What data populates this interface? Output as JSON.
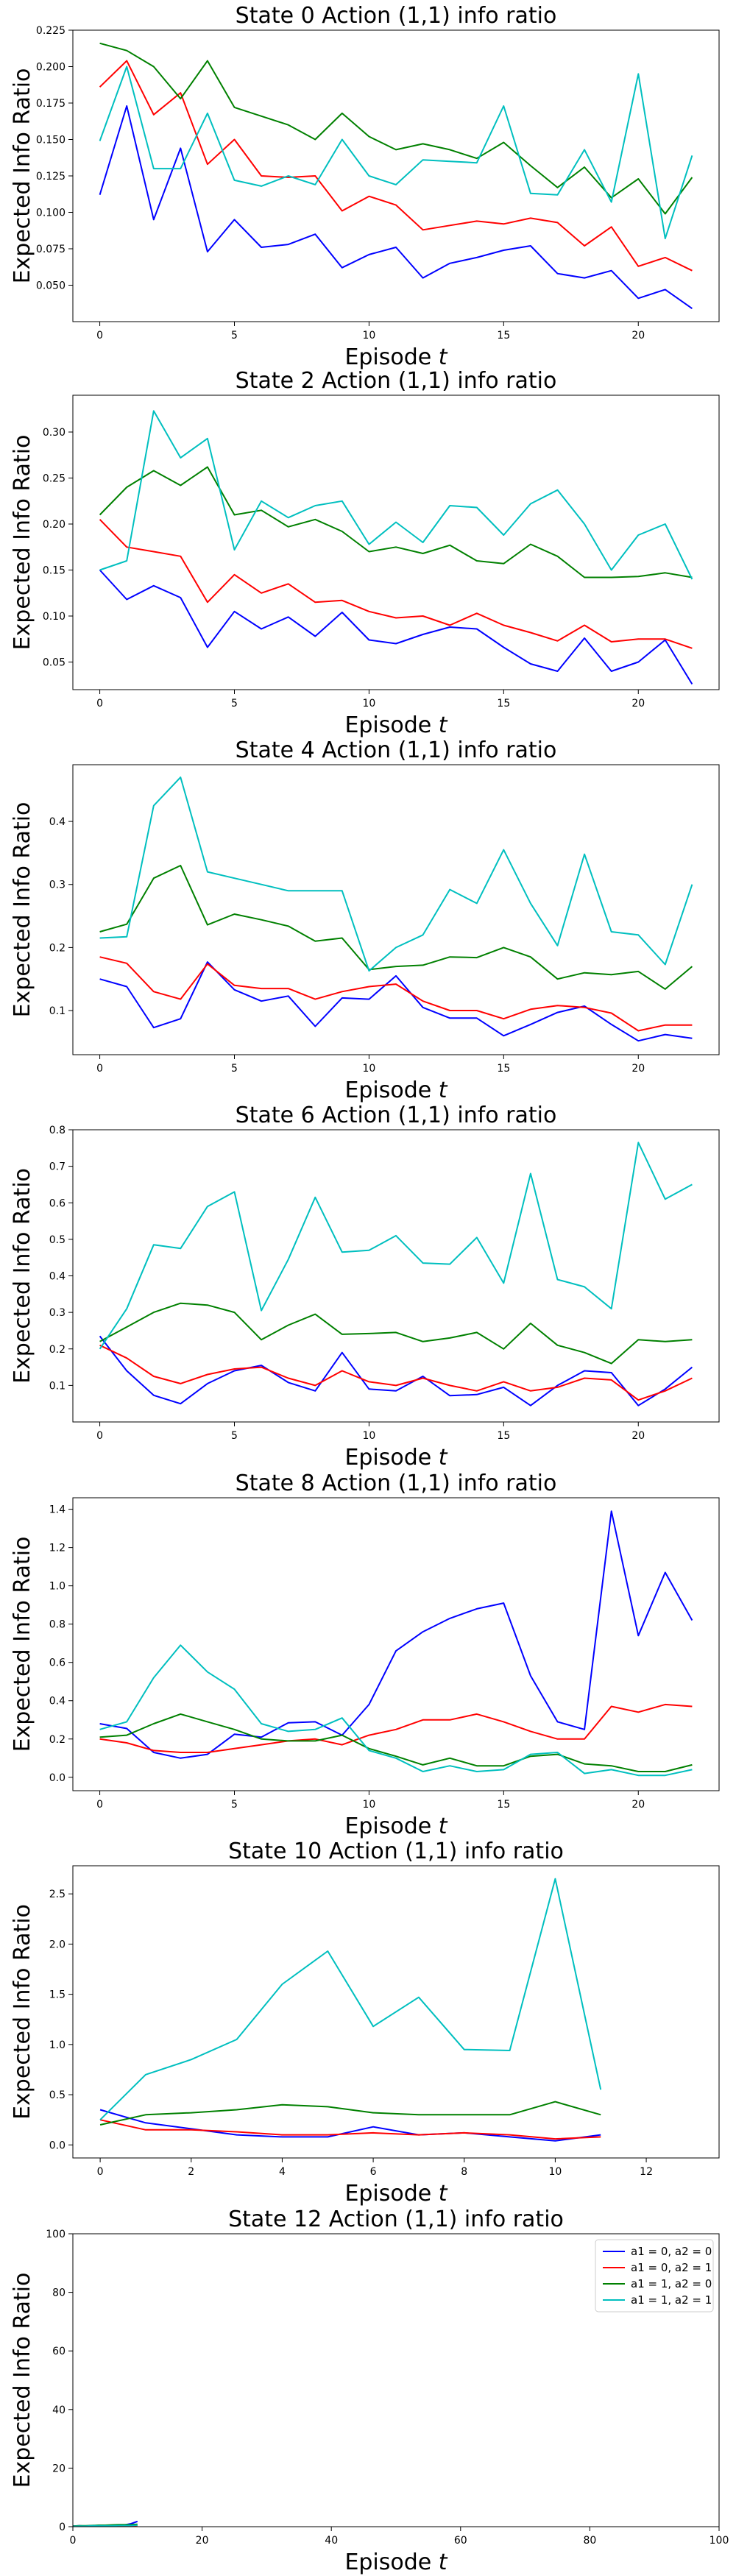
{
  "chart_data": [
    {
      "type": "line",
      "title": "State 0 Action (1,1) info ratio",
      "xlabel": "Episode t",
      "ylabel": "Expected Info Ratio",
      "xlim": [
        -1,
        23
      ],
      "ylim": [
        0.025,
        0.225
      ],
      "xticks": [
        0,
        5,
        10,
        15,
        20
      ],
      "yticks": [
        0.05,
        0.075,
        0.1,
        0.125,
        0.15,
        0.175,
        0.2,
        0.225
      ],
      "ytick_labels": [
        "0.050",
        "0.075",
        "0.100",
        "0.125",
        "0.150",
        "0.175",
        "0.200",
        "0.225"
      ],
      "x": [
        0,
        1,
        2,
        3,
        4,
        5,
        6,
        7,
        8,
        9,
        10,
        11,
        12,
        13,
        14,
        15,
        16,
        17,
        18,
        19,
        20,
        21,
        22
      ],
      "series": [
        {
          "color": "#0000ff",
          "values": [
            0.112,
            0.173,
            0.095,
            0.144,
            0.073,
            0.095,
            0.076,
            0.078,
            0.085,
            0.062,
            0.071,
            0.076,
            0.055,
            0.065,
            0.069,
            0.074,
            0.077,
            0.058,
            0.055,
            0.06,
            0.041,
            0.047,
            0.034
          ]
        },
        {
          "color": "#ff0000",
          "values": [
            0.186,
            0.204,
            0.167,
            0.182,
            0.133,
            0.15,
            0.125,
            0.124,
            0.125,
            0.101,
            0.111,
            0.105,
            0.088,
            0.091,
            0.094,
            0.092,
            0.096,
            0.093,
            0.077,
            0.09,
            0.063,
            0.069,
            0.06
          ]
        },
        {
          "color": "#008000",
          "values": [
            0.216,
            0.211,
            0.2,
            0.178,
            0.204,
            0.172,
            0.166,
            0.16,
            0.15,
            0.168,
            0.152,
            0.143,
            0.147,
            0.143,
            0.137,
            0.148,
            0.132,
            0.117,
            0.131,
            0.11,
            0.123,
            0.099,
            0.124
          ]
        },
        {
          "color": "#00bfbf",
          "values": [
            0.149,
            0.2,
            0.13,
            0.13,
            0.168,
            0.122,
            0.118,
            0.125,
            0.119,
            0.15,
            0.125,
            0.119,
            0.136,
            0.135,
            0.134,
            0.173,
            0.113,
            0.112,
            0.143,
            0.107,
            0.195,
            0.082,
            0.139
          ]
        }
      ]
    },
    {
      "type": "line",
      "title": "State 2 Action (1,1) info ratio",
      "xlabel": "Episode t",
      "ylabel": "Expected Info Ratio",
      "xlim": [
        -1,
        23
      ],
      "ylim": [
        0.02,
        0.34
      ],
      "xticks": [
        0,
        5,
        10,
        15,
        20
      ],
      "yticks": [
        0.05,
        0.1,
        0.15,
        0.2,
        0.25,
        0.3
      ],
      "ytick_labels": [
        "0.05",
        "0.10",
        "0.15",
        "0.20",
        "0.25",
        "0.30"
      ],
      "x": [
        0,
        1,
        2,
        3,
        4,
        5,
        6,
        7,
        8,
        9,
        10,
        11,
        12,
        13,
        14,
        15,
        16,
        17,
        18,
        19,
        20,
        21,
        22
      ],
      "series": [
        {
          "color": "#0000ff",
          "values": [
            0.15,
            0.118,
            0.133,
            0.12,
            0.066,
            0.105,
            0.086,
            0.099,
            0.078,
            0.104,
            0.074,
            0.07,
            0.08,
            0.088,
            0.086,
            0.066,
            0.048,
            0.04,
            0.076,
            0.04,
            0.05,
            0.074,
            0.026
          ]
        },
        {
          "color": "#ff0000",
          "values": [
            0.205,
            0.175,
            0.17,
            0.165,
            0.115,
            0.145,
            0.125,
            0.135,
            0.115,
            0.117,
            0.105,
            0.098,
            0.1,
            0.09,
            0.103,
            0.09,
            0.082,
            0.073,
            0.09,
            0.072,
            0.075,
            0.075,
            0.065
          ]
        },
        {
          "color": "#008000",
          "values": [
            0.21,
            0.24,
            0.258,
            0.242,
            0.262,
            0.21,
            0.215,
            0.197,
            0.205,
            0.192,
            0.17,
            0.175,
            0.168,
            0.177,
            0.16,
            0.157,
            0.178,
            0.165,
            0.142,
            0.142,
            0.143,
            0.147,
            0.142
          ]
        },
        {
          "color": "#00bfbf",
          "values": [
            0.15,
            0.16,
            0.323,
            0.272,
            0.293,
            0.172,
            0.225,
            0.207,
            0.22,
            0.225,
            0.178,
            0.202,
            0.18,
            0.22,
            0.218,
            0.188,
            0.222,
            0.237,
            0.2,
            0.15,
            0.188,
            0.2,
            0.14
          ]
        }
      ]
    },
    {
      "type": "line",
      "title": "State 4 Action (1,1) info ratio",
      "xlabel": "Episode t",
      "ylabel": "Expected Info Ratio",
      "xlim": [
        -1,
        23
      ],
      "ylim": [
        0.03,
        0.49
      ],
      "xticks": [
        0,
        5,
        10,
        15,
        20
      ],
      "yticks": [
        0.1,
        0.2,
        0.3,
        0.4
      ],
      "ytick_labels": [
        "0.1",
        "0.2",
        "0.3",
        "0.4"
      ],
      "x": [
        0,
        1,
        2,
        3,
        4,
        5,
        6,
        7,
        8,
        9,
        10,
        11,
        12,
        13,
        14,
        15,
        16,
        17,
        18,
        19,
        20,
        21,
        22
      ],
      "series": [
        {
          "color": "#0000ff",
          "values": [
            0.15,
            0.138,
            0.073,
            0.087,
            0.177,
            0.133,
            0.115,
            0.123,
            0.075,
            0.12,
            0.118,
            0.155,
            0.105,
            0.088,
            0.088,
            0.06,
            0.078,
            0.097,
            0.107,
            0.078,
            0.052,
            0.062,
            0.056
          ]
        },
        {
          "color": "#ff0000",
          "values": [
            0.185,
            0.175,
            0.13,
            0.118,
            0.174,
            0.14,
            0.135,
            0.135,
            0.118,
            0.13,
            0.138,
            0.142,
            0.115,
            0.1,
            0.1,
            0.087,
            0.102,
            0.108,
            0.105,
            0.096,
            0.068,
            0.077,
            0.077
          ]
        },
        {
          "color": "#008000",
          "values": [
            0.225,
            0.237,
            0.31,
            0.33,
            0.236,
            0.253,
            0.244,
            0.234,
            0.21,
            0.215,
            0.165,
            0.17,
            0.172,
            0.185,
            0.184,
            0.2,
            0.185,
            0.15,
            0.16,
            0.157,
            0.162,
            0.134,
            0.17
          ]
        },
        {
          "color": "#00bfbf",
          "values": [
            0.215,
            0.217,
            0.425,
            0.47,
            0.32,
            0.31,
            0.3,
            0.29,
            0.29,
            0.29,
            0.163,
            0.2,
            0.22,
            0.292,
            0.27,
            0.355,
            0.27,
            0.203,
            0.348,
            0.225,
            0.22,
            0.173,
            0.3
          ]
        }
      ]
    },
    {
      "type": "line",
      "title": "State 6 Action (1,1) info ratio",
      "xlabel": "Episode t",
      "ylabel": "Expected Info Ratio",
      "xlim": [
        -1,
        23
      ],
      "ylim": [
        0.0,
        0.8
      ],
      "xticks": [
        0,
        5,
        10,
        15,
        20
      ],
      "yticks": [
        0.1,
        0.2,
        0.3,
        0.4,
        0.5,
        0.6,
        0.7,
        0.8
      ],
      "ytick_labels": [
        "0.1",
        "0.2",
        "0.3",
        "0.4",
        "0.5",
        "0.6",
        "0.7",
        "0.8"
      ],
      "x": [
        0,
        1,
        2,
        3,
        4,
        5,
        6,
        7,
        8,
        9,
        10,
        11,
        12,
        13,
        14,
        15,
        16,
        17,
        18,
        19,
        20,
        21,
        22
      ],
      "series": [
        {
          "color": "#0000ff",
          "values": [
            0.235,
            0.14,
            0.073,
            0.05,
            0.105,
            0.14,
            0.155,
            0.108,
            0.085,
            0.19,
            0.09,
            0.085,
            0.125,
            0.072,
            0.075,
            0.095,
            0.045,
            0.1,
            0.14,
            0.135,
            0.045,
            0.09,
            0.15
          ]
        },
        {
          "color": "#ff0000",
          "values": [
            0.21,
            0.175,
            0.125,
            0.105,
            0.13,
            0.145,
            0.15,
            0.12,
            0.1,
            0.14,
            0.11,
            0.1,
            0.12,
            0.1,
            0.085,
            0.11,
            0.085,
            0.095,
            0.12,
            0.115,
            0.06,
            0.085,
            0.12
          ]
        },
        {
          "color": "#008000",
          "values": [
            0.22,
            0.26,
            0.3,
            0.325,
            0.32,
            0.3,
            0.225,
            0.265,
            0.295,
            0.24,
            0.242,
            0.245,
            0.22,
            0.23,
            0.245,
            0.2,
            0.27,
            0.21,
            0.19,
            0.16,
            0.225,
            0.22,
            0.225
          ]
        },
        {
          "color": "#00bfbf",
          "values": [
            0.2,
            0.31,
            0.485,
            0.475,
            0.59,
            0.63,
            0.305,
            0.445,
            0.615,
            0.465,
            0.47,
            0.51,
            0.435,
            0.432,
            0.505,
            0.38,
            0.68,
            0.39,
            0.37,
            0.31,
            0.765,
            0.61,
            0.65
          ]
        }
      ]
    },
    {
      "type": "line",
      "title": "State 8 Action (1,1) info ratio",
      "xlabel": "Episode t",
      "ylabel": "Expected Info Ratio",
      "xlim": [
        -1,
        23
      ],
      "ylim": [
        -0.07,
        1.46
      ],
      "xticks": [
        0,
        5,
        10,
        15,
        20
      ],
      "yticks": [
        0.0,
        0.2,
        0.4,
        0.6,
        0.8,
        1.0,
        1.2,
        1.4
      ],
      "ytick_labels": [
        "0.0",
        "0.2",
        "0.4",
        "0.6",
        "0.8",
        "1.0",
        "1.2",
        "1.4"
      ],
      "x": [
        0,
        1,
        2,
        3,
        4,
        5,
        6,
        7,
        8,
        9,
        10,
        11,
        12,
        13,
        14,
        15,
        16,
        17,
        18,
        19,
        20,
        21,
        22
      ],
      "series": [
        {
          "color": "#0000ff",
          "values": [
            0.28,
            0.255,
            0.13,
            0.1,
            0.12,
            0.225,
            0.21,
            0.285,
            0.29,
            0.22,
            0.38,
            0.66,
            0.76,
            0.83,
            0.88,
            0.91,
            0.53,
            0.29,
            0.25,
            1.39,
            0.74,
            1.07,
            0.82
          ]
        },
        {
          "color": "#ff0000",
          "values": [
            0.2,
            0.18,
            0.14,
            0.13,
            0.13,
            0.15,
            0.17,
            0.19,
            0.2,
            0.17,
            0.22,
            0.25,
            0.3,
            0.3,
            0.33,
            0.29,
            0.24,
            0.2,
            0.2,
            0.37,
            0.34,
            0.38,
            0.37
          ]
        },
        {
          "color": "#008000",
          "values": [
            0.21,
            0.22,
            0.28,
            0.33,
            0.29,
            0.25,
            0.2,
            0.19,
            0.19,
            0.22,
            0.15,
            0.11,
            0.065,
            0.1,
            0.06,
            0.06,
            0.11,
            0.12,
            0.07,
            0.06,
            0.03,
            0.03,
            0.065
          ]
        },
        {
          "color": "#00bfbf",
          "values": [
            0.25,
            0.29,
            0.52,
            0.69,
            0.55,
            0.46,
            0.28,
            0.24,
            0.25,
            0.31,
            0.14,
            0.1,
            0.03,
            0.06,
            0.03,
            0.04,
            0.12,
            0.13,
            0.02,
            0.04,
            0.01,
            0.01,
            0.04
          ]
        }
      ]
    },
    {
      "type": "line",
      "title": "State 10 Action (1,1) info ratio",
      "xlabel": "Episode t",
      "ylabel": "Expected Info Ratio",
      "xlim": [
        -0.6,
        13.6
      ],
      "ylim": [
        -0.13,
        2.78
      ],
      "xticks": [
        0,
        2,
        4,
        6,
        8,
        10,
        12
      ],
      "yticks": [
        0.0,
        0.5,
        1.0,
        1.5,
        2.0,
        2.5
      ],
      "ytick_labels": [
        "0.0",
        "0.5",
        "1.0",
        "1.5",
        "2.0",
        "2.5"
      ],
      "x": [
        0,
        1,
        2,
        3,
        4,
        5,
        6,
        7,
        8,
        9,
        10,
        11
      ],
      "series": [
        {
          "color": "#0000ff",
          "values": [
            0.35,
            0.22,
            0.16,
            0.1,
            0.08,
            0.08,
            0.18,
            0.1,
            0.12,
            0.08,
            0.04,
            0.1
          ]
        },
        {
          "color": "#ff0000",
          "values": [
            0.25,
            0.15,
            0.15,
            0.13,
            0.1,
            0.1,
            0.12,
            0.1,
            0.12,
            0.1,
            0.06,
            0.08
          ]
        },
        {
          "color": "#008000",
          "values": [
            0.2,
            0.3,
            0.32,
            0.35,
            0.4,
            0.38,
            0.32,
            0.3,
            0.3,
            0.3,
            0.43,
            0.3
          ]
        },
        {
          "color": "#00bfbf",
          "values": [
            0.25,
            0.7,
            0.85,
            1.05,
            1.6,
            1.93,
            1.18,
            1.47,
            0.95,
            0.94,
            2.65,
            0.55
          ]
        }
      ]
    },
    {
      "type": "line",
      "title": "State 12 Action (1,1) info ratio",
      "xlabel": "Episode t",
      "ylabel": "Expected Info Ratio",
      "xlim": [
        0,
        100
      ],
      "ylim": [
        0,
        100
      ],
      "xticks": [
        0,
        20,
        40,
        60,
        80,
        100
      ],
      "yticks": [
        0,
        20,
        40,
        60,
        80,
        100
      ],
      "ytick_labels": [
        "0",
        "20",
        "40",
        "60",
        "80",
        "100"
      ],
      "legend_position": "top-right",
      "x": [
        0,
        1,
        2,
        3,
        4,
        5,
        6,
        7,
        8,
        9,
        10
      ],
      "series": [
        {
          "name": "a1 = 0, a2 = 0",
          "color": "#0000ff",
          "values": [
            0.2,
            0.3,
            0.2,
            0.3,
            0.3,
            0.3,
            0.4,
            0.5,
            0.6,
            1.0,
            1.8
          ]
        },
        {
          "name": "a1 = 0, a2 = 1",
          "color": "#ff0000",
          "values": [
            0.1,
            0.1,
            0.1,
            0.1,
            0.1,
            0.2,
            0.2,
            0.2,
            0.2,
            0.3,
            0.4
          ]
        },
        {
          "name": "a1 = 1, a2 = 0",
          "color": "#008000",
          "values": [
            0.2,
            0.3,
            0.3,
            0.4,
            0.5,
            0.5,
            0.6,
            0.7,
            0.7,
            0.7,
            0.8
          ]
        },
        {
          "name": "a1 = 1, a2 = 1",
          "color": "#00bfbf",
          "values": [
            0.1,
            0.2,
            0.2,
            0.3,
            0.3,
            0.3,
            0.3,
            0.4,
            0.4,
            0.4,
            0.5
          ]
        }
      ]
    }
  ]
}
